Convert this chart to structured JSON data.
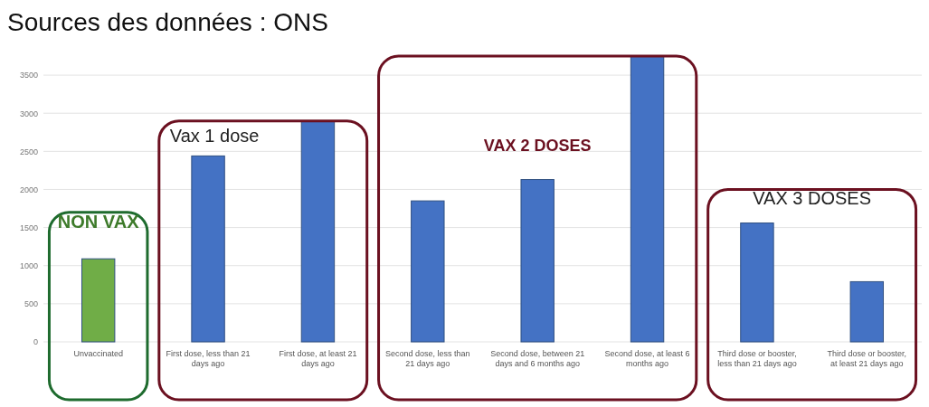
{
  "chart_data": {
    "type": "bar",
    "title": "Sources des données : ONS",
    "categories": [
      "Unvaccinated",
      "First dose, less than 21 days ago",
      "First dose, at least 21 days ago",
      "Second dose, less than 21 days ago",
      "Second dose, between 21 days and 6 months ago",
      "Second dose, at least 6 months ago",
      "Third dose or booster, less than 21 days ago",
      "Third dose or booster, at least 21 days ago"
    ],
    "values": [
      1090,
      2440,
      2900,
      1850,
      2130,
      3750,
      1560,
      790
    ],
    "colors": [
      "#70ad47",
      "#4472c4",
      "#4472c4",
      "#4472c4",
      "#4472c4",
      "#4472c4",
      "#4472c4",
      "#4472c4"
    ],
    "ylim": [
      0,
      3750
    ],
    "yticks": [
      0,
      500,
      1000,
      1500,
      2000,
      2500,
      3000,
      3500
    ],
    "grid": "y",
    "annotations": [
      "NON VAX",
      "Vax 1 dose",
      "VAX 2 DOSES",
      "VAX 3 DOSES"
    ]
  }
}
